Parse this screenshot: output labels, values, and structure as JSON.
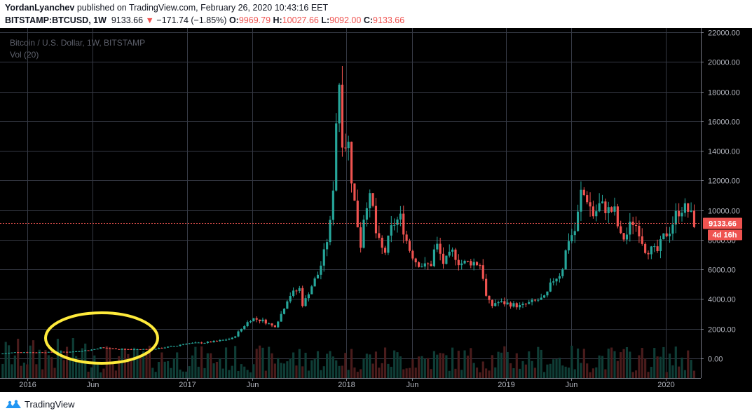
{
  "header": {
    "author": "YordanLyanchev",
    "published_text": "published on TradingView.com, February 26, 2020 10:43:16 EET",
    "symbol": "BITSTAMP:BTCUSD, 1W",
    "last": "9133.66",
    "change_arrow": "▼",
    "change": "−171.74 (−1.85%)",
    "o_label": "O:",
    "o": "9969.79",
    "h_label": "H:",
    "h": "10027.66",
    "l_label": "L:",
    "l": "9092.00",
    "c_label": "C:",
    "c": "9133.66"
  },
  "legend": {
    "title": "Bitcoin / U.S. Dollar, 1W, BITSTAMP",
    "vol": "Vol (20)"
  },
  "price_label": "9133.66",
  "countdown_label": "4d 16h",
  "footer": {
    "brand": "TradingView"
  },
  "colors": {
    "up": "#26a69a",
    "down": "#ef5350",
    "grid": "#363a45",
    "annotation": "#ffeb3b",
    "price_line": "#ef5350"
  },
  "chart_data": {
    "type": "candlestick",
    "title": "Bitcoin / U.S. Dollar, 1W, BITSTAMP",
    "ylim": [
      -1000,
      22000
    ],
    "y_ticks": [
      22000,
      20000,
      18000,
      16000,
      14000,
      12000,
      10000,
      8000,
      6000,
      4000,
      2000,
      0
    ],
    "y_tick_labels": [
      "22000.00",
      "20000.00",
      "18000.00",
      "16000.00",
      "14000.00",
      "12000.00",
      "10000.00",
      "8000.00",
      "6000.00",
      "4000.00",
      "2000.00",
      "0.00"
    ],
    "x_ticks": [
      {
        "label": "2016",
        "t": 2016.0
      },
      {
        "label": "Jun",
        "t": 2016.41
      },
      {
        "label": "2017",
        "t": 2017.0
      },
      {
        "label": "Jun",
        "t": 2017.41
      },
      {
        "label": "2018",
        "t": 2018.0
      },
      {
        "label": "Jun",
        "t": 2018.41
      },
      {
        "label": "2019",
        "t": 2019.0
      },
      {
        "label": "Jun",
        "t": 2019.41
      },
      {
        "label": "2020",
        "t": 2020.0
      }
    ],
    "x_range": [
      2015.83,
      2020.22
    ],
    "price_line": 9133.66,
    "grid": true,
    "annotation": "yellow ellipse around mid-2016 price range",
    "anchors": [
      [
        2015.84,
        300
      ],
      [
        2015.95,
        420
      ],
      [
        2016.05,
        400
      ],
      [
        2016.2,
        420
      ],
      [
        2016.3,
        450
      ],
      [
        2016.42,
        580
      ],
      [
        2016.47,
        720
      ],
      [
        2016.55,
        650
      ],
      [
        2016.65,
        600
      ],
      [
        2016.8,
        620
      ],
      [
        2016.95,
        850
      ],
      [
        2017.0,
        1000
      ],
      [
        2017.12,
        1050
      ],
      [
        2017.2,
        1150
      ],
      [
        2017.3,
        1350
      ],
      [
        2017.38,
        2300
      ],
      [
        2017.42,
        2700
      ],
      [
        2017.5,
        2500
      ],
      [
        2017.56,
        2100
      ],
      [
        2017.6,
        2900
      ],
      [
        2017.65,
        4200
      ],
      [
        2017.72,
        4700
      ],
      [
        2017.74,
        3500
      ],
      [
        2017.78,
        4600
      ],
      [
        2017.84,
        5800
      ],
      [
        2017.88,
        7400
      ],
      [
        2017.92,
        9600
      ],
      [
        2017.95,
        16500
      ],
      [
        2017.97,
        19000
      ],
      [
        2017.99,
        14000
      ],
      [
        2018.02,
        15000
      ],
      [
        2018.05,
        11500
      ],
      [
        2018.08,
        9200
      ],
      [
        2018.1,
        7500
      ],
      [
        2018.13,
        10500
      ],
      [
        2018.17,
        10800
      ],
      [
        2018.2,
        8200
      ],
      [
        2018.25,
        7000
      ],
      [
        2018.3,
        9000
      ],
      [
        2018.35,
        9500
      ],
      [
        2018.4,
        7500
      ],
      [
        2018.45,
        6500
      ],
      [
        2018.5,
        6200
      ],
      [
        2018.55,
        6400
      ],
      [
        2018.57,
        7900
      ],
      [
        2018.62,
        6400
      ],
      [
        2018.68,
        7200
      ],
      [
        2018.72,
        6400
      ],
      [
        2018.8,
        6500
      ],
      [
        2018.86,
        6300
      ],
      [
        2018.88,
        4300
      ],
      [
        2018.92,
        3500
      ],
      [
        2018.95,
        3800
      ],
      [
        2019.02,
        3700
      ],
      [
        2019.1,
        3500
      ],
      [
        2019.2,
        3900
      ],
      [
        2019.26,
        4100
      ],
      [
        2019.3,
        5200
      ],
      [
        2019.36,
        5800
      ],
      [
        2019.4,
        8000
      ],
      [
        2019.45,
        8700
      ],
      [
        2019.48,
        11200
      ],
      [
        2019.52,
        10800
      ],
      [
        2019.56,
        9600
      ],
      [
        2019.6,
        10400
      ],
      [
        2019.65,
        10000
      ],
      [
        2019.7,
        9900
      ],
      [
        2019.72,
        8200
      ],
      [
        2019.76,
        8100
      ],
      [
        2019.8,
        9300
      ],
      [
        2019.84,
        8800
      ],
      [
        2019.88,
        7400
      ],
      [
        2019.92,
        7300
      ],
      [
        2019.96,
        7200
      ],
      [
        2020.0,
        8200
      ],
      [
        2020.04,
        8700
      ],
      [
        2020.08,
        9800
      ],
      [
        2020.12,
        10200
      ],
      [
        2020.16,
        9900
      ],
      [
        2020.19,
        9133.66
      ]
    ]
  }
}
